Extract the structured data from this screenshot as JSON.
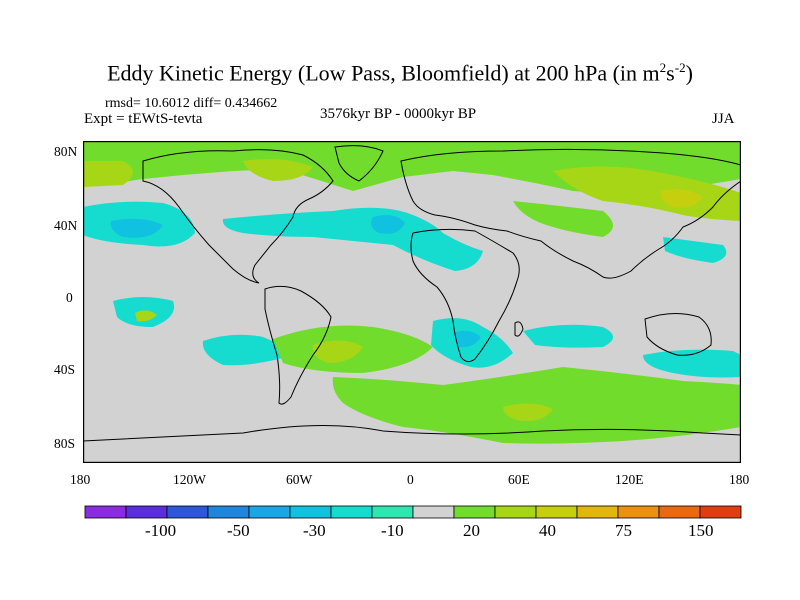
{
  "title": {
    "main": "Eddy Kinetic Energy (Low Pass, Bloomfield) at 200 hPa (in m",
    "sup1": "2",
    "mid": "s",
    "sup2": "-2",
    "close": ")"
  },
  "stats": "rmsd= 10.6012  diff= 0.434662",
  "expt": "Expt = tEWtS-tevta",
  "period": "3576kyr BP - 0000kyr BP",
  "season": "JJA",
  "lat_ticks": [
    "80N",
    "40N",
    "0",
    "40S",
    "80S"
  ],
  "lon_ticks": [
    "180",
    "120W",
    "60W",
    "0",
    "60E",
    "120E",
    "180"
  ],
  "colorbar": {
    "colors": [
      "#8a2be2",
      "#5a2edc",
      "#2e56d8",
      "#1e86dc",
      "#1aa6e4",
      "#10c2e0",
      "#16dcd0",
      "#2ee6b0",
      "#d2d2d2",
      "#72dc2c",
      "#a6d616",
      "#c6cf0e",
      "#e2b60c",
      "#ec9010",
      "#ea6810",
      "#e03e12"
    ],
    "labels": [
      "-100",
      "-50",
      "-30",
      "-10",
      "20",
      "40",
      "75",
      "150"
    ]
  },
  "fill_colors": {
    "neutral": "#d2d2d2",
    "light_green": "#72dc2c",
    "yellow_green": "#a6d616",
    "olive": "#c6cf0e",
    "orange": "#e2b60c",
    "teal": "#16dcd0",
    "cyan": "#10c2e0",
    "light_blue": "#1aa6e4"
  }
}
